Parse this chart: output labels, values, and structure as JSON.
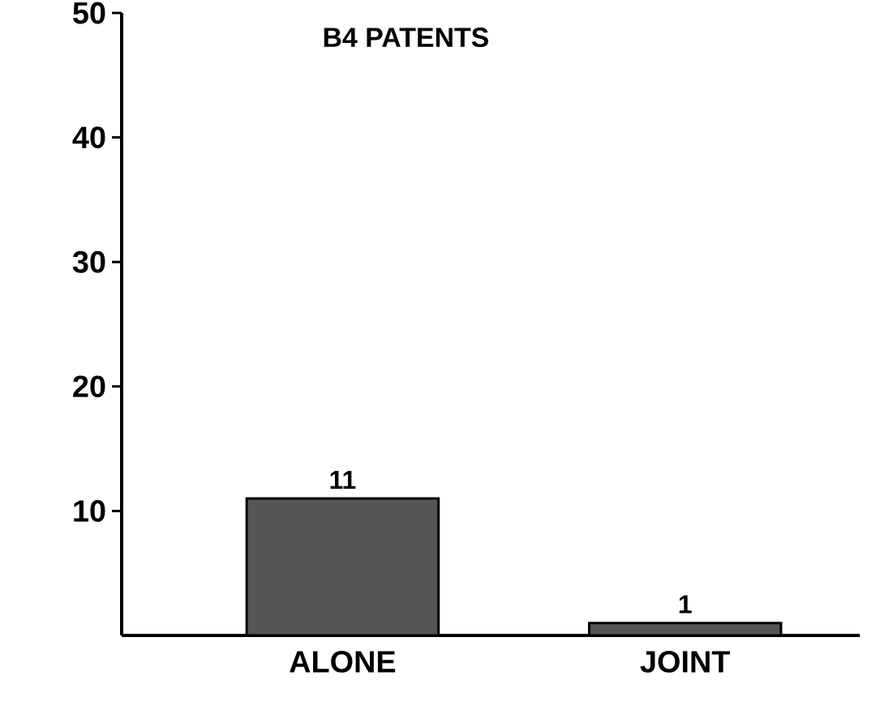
{
  "chart_data": {
    "type": "bar",
    "title": "B4 PATENTS",
    "categories": [
      "ALONE",
      "JOINT"
    ],
    "values": [
      11,
      1
    ],
    "color": "#555555",
    "ylim": [
      0,
      50
    ],
    "yticks": [
      10,
      20,
      30,
      40,
      50
    ],
    "data_labels": true
  }
}
